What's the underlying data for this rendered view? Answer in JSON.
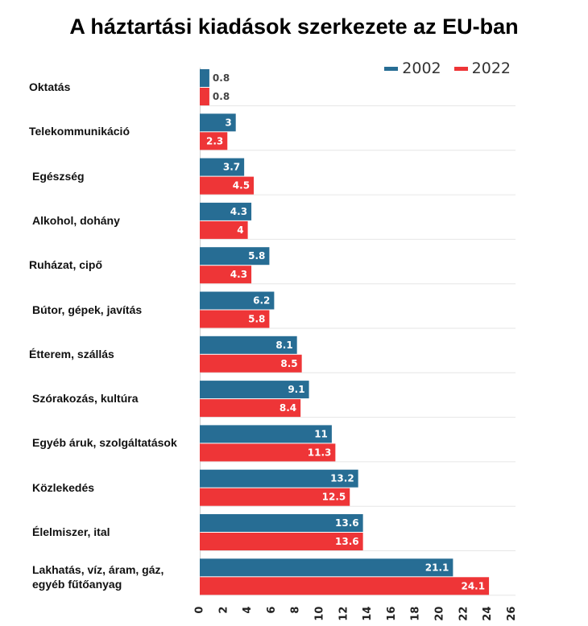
{
  "title": "A háztartási kiadások szerkezete az EU-ban",
  "colors": {
    "s2002": "#276d94",
    "s2022": "#ee3537"
  },
  "chart_data": {
    "type": "bar",
    "orientation": "horizontal",
    "title": "A háztartási kiadások szerkezete az EU-ban",
    "categories": [
      "Oktatás",
      "Telekommunikáció",
      "Egészség",
      "Alkohol, dohány",
      "Ruházat, cipő",
      "Bútor, gépek, javítás",
      "Étterem, szállás",
      "Szórakozás, kultúra",
      "Egyéb áruk, szolgáltatások",
      "Közlekedés",
      "Élelmiszer, ital",
      "Lakhatás, víz, áram, gáz, egyéb fűtőanyag"
    ],
    "series": [
      {
        "name": "2002",
        "values": [
          0.8,
          3,
          3.7,
          4.3,
          5.8,
          6.2,
          8.1,
          9.1,
          11,
          13.2,
          13.6,
          21.1
        ]
      },
      {
        "name": "2022",
        "values": [
          0.8,
          2.3,
          4.5,
          4,
          4.3,
          5.8,
          8.5,
          8.4,
          11.3,
          12.5,
          13.6,
          24.1
        ]
      }
    ],
    "xlim": [
      0,
      26
    ],
    "xticks": [
      "0",
      "2",
      "4",
      "6",
      "8",
      "10",
      "12",
      "14",
      "16",
      "18",
      "20",
      "22",
      "24",
      "26"
    ],
    "xlabel": "",
    "ylabel": "",
    "legend": "top-right",
    "grid": true
  }
}
